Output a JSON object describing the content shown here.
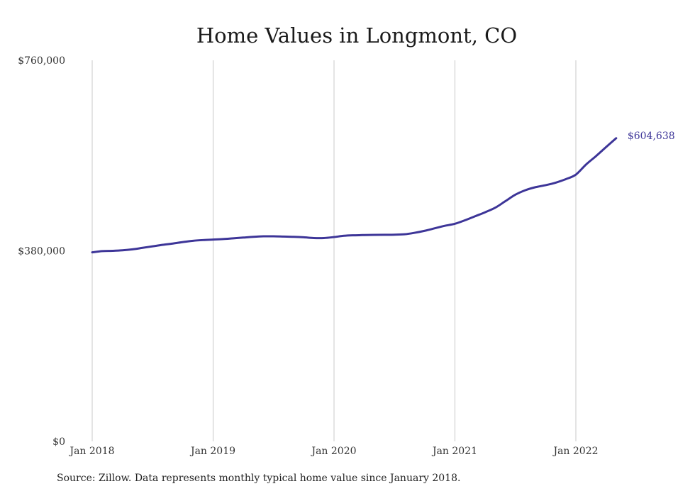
{
  "source_note": "Source: Zillow. Data represents monthly typical home value since January 2018.",
  "colors": {
    "line": "#3d3598",
    "grid": "#c8c8c8",
    "text": "#333333"
  },
  "chart_data": {
    "type": "line",
    "title": "Home Values in Longmont, CO",
    "xlabel": "",
    "ylabel": "",
    "ylim": [
      0,
      760000
    ],
    "y_ticks": [
      {
        "value": 0,
        "label": "$0"
      },
      {
        "value": 380000,
        "label": "$380,000"
      },
      {
        "value": 760000,
        "label": "$760,000"
      }
    ],
    "x_ticks": [
      {
        "value": "2018-01",
        "label": "Jan 2018"
      },
      {
        "value": "2019-01",
        "label": "Jan 2019"
      },
      {
        "value": "2020-01",
        "label": "Jan 2020"
      },
      {
        "value": "2021-01",
        "label": "Jan 2021"
      },
      {
        "value": "2022-01",
        "label": "Jan 2022"
      }
    ],
    "grid": "vertical",
    "end_label": "$604,638",
    "series": [
      {
        "x": [
          "2018-01",
          "2018-02",
          "2018-03",
          "2018-04",
          "2018-05",
          "2018-06",
          "2018-07",
          "2018-08",
          "2018-09",
          "2018-10",
          "2018-11",
          "2018-12",
          "2019-01",
          "2019-02",
          "2019-03",
          "2019-04",
          "2019-05",
          "2019-06",
          "2019-07",
          "2019-08",
          "2019-09",
          "2019-10",
          "2019-11",
          "2019-12",
          "2020-01",
          "2020-02",
          "2020-03",
          "2020-04",
          "2020-05",
          "2020-06",
          "2020-07",
          "2020-08",
          "2020-09",
          "2020-10",
          "2020-11",
          "2020-12",
          "2021-01",
          "2021-02",
          "2021-03",
          "2021-04",
          "2021-05",
          "2021-06",
          "2021-07",
          "2021-08",
          "2021-09",
          "2021-10",
          "2021-11",
          "2021-12",
          "2022-01",
          "2022-02",
          "2022-03",
          "2022-04",
          "2022-05"
        ],
        "values": [
          377000,
          379500,
          380000,
          381000,
          383000,
          386000,
          389000,
          392000,
          394500,
          397500,
          400000,
          401500,
          402500,
          403500,
          405000,
          406500,
          408000,
          409000,
          409000,
          408500,
          408000,
          407000,
          405500,
          405500,
          407500,
          410000,
          411000,
          411500,
          411800,
          412000,
          412200,
          413000,
          416000,
          420000,
          425000,
          430000,
          434000,
          441000,
          449000,
          457000,
          466000,
          479000,
          492000,
          501000,
          507000,
          511000,
          516000,
          523000,
          532000,
          552000,
          569000,
          587000,
          604638
        ]
      }
    ]
  }
}
